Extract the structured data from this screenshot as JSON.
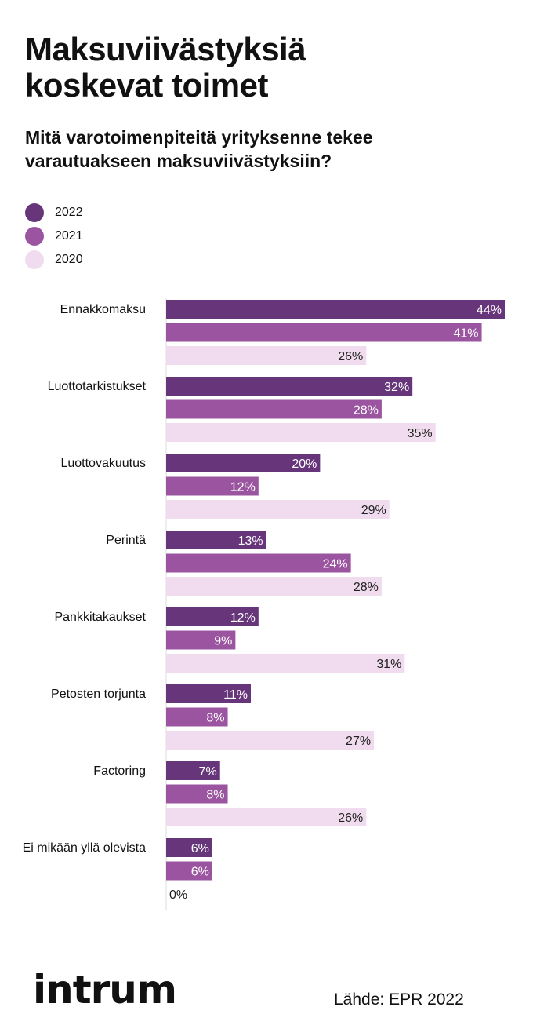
{
  "title": "Maksuviivästyksiä\nkoskevat toimet",
  "subtitle": "Mitä varotoimenpiteitä yrityksenne tekee\nvarautuakseen maksuviivästyksiin?",
  "logo_text": "intrum",
  "source": "Lähde: EPR 2022",
  "legend": [
    {
      "label": "2022",
      "color": "#66357a"
    },
    {
      "label": "2021",
      "color": "#9b55a0"
    },
    {
      "label": "2020",
      "color": "#f0dcee"
    }
  ],
  "chart_data": {
    "type": "bar",
    "orientation": "horizontal",
    "title": "Mitä varotoimenpiteitä yrityksenne tekee varautuakseen maksuviivästyksiin?",
    "value_suffix": "%",
    "xlim": [
      0,
      44
    ],
    "grid": false,
    "legend_position": "top-left",
    "categories": [
      "Ennakkomaksu",
      "Luottotarkistukset",
      "Luottovakuutus",
      "Perintä",
      "Pankkitakaukset",
      "Petosten torjunta",
      "Factoring",
      "Ei mikään yllä olevista"
    ],
    "series": [
      {
        "name": "2022",
        "color": "#66357a",
        "label_color": "#ffffff",
        "values": [
          44,
          32,
          20,
          13,
          12,
          11,
          7,
          6
        ]
      },
      {
        "name": "2021",
        "color": "#9b55a0",
        "label_color": "#ffffff",
        "values": [
          41,
          28,
          12,
          24,
          9,
          8,
          8,
          6
        ]
      },
      {
        "name": "2020",
        "color": "#f0dcee",
        "label_color": "#222222",
        "values": [
          26,
          35,
          29,
          28,
          31,
          27,
          26,
          0
        ]
      }
    ]
  }
}
